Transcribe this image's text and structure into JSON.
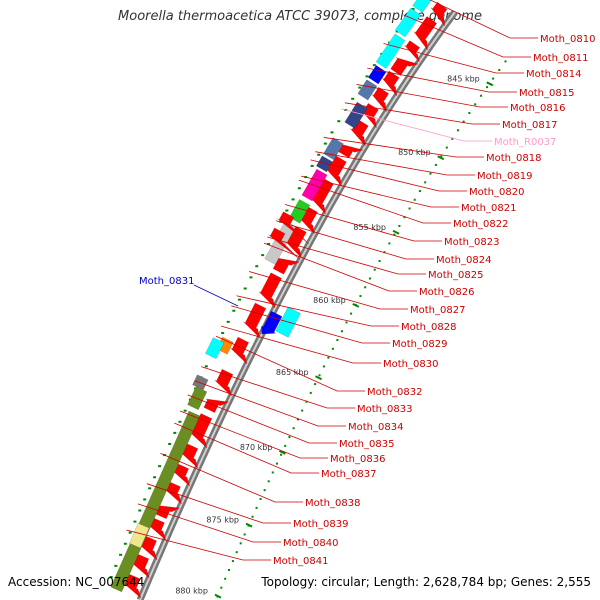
{
  "header": {
    "title": "Moorella thermoacetica ATCC 39073, complete genome"
  },
  "footer": {
    "accession": "Accession: NC_007644",
    "summary": "Topology: circular; Length: 2,628,784 bp; Genes: 2,555"
  },
  "colors": {
    "forward": "#ff0000",
    "label_default": "#cc0000",
    "label_rna": "#ff99cc",
    "label_selected": "#0000cc",
    "cyan": "#00ffff",
    "blue": "#0000ff",
    "olive": "#6b8e23",
    "gray": "#c8c8c8",
    "magenta": "#ff00aa",
    "green": "#22cc22",
    "orange": "#ff8800",
    "steel": "#5577aa",
    "navy": "#334488",
    "pale": "#f0e68c",
    "tick": "#008800"
  },
  "kbp_ticks": [
    "845 kbp",
    "850 kbp",
    "855 kbp",
    "860 kbp",
    "865 kbp",
    "870 kbp",
    "875 kbp",
    "880 kbp"
  ],
  "genes": [
    {
      "name": "Moth_0810",
      "color": "label_default"
    },
    {
      "name": "Moth_0811",
      "color": "label_default"
    },
    {
      "name": "Moth_0814",
      "color": "label_default"
    },
    {
      "name": "Moth_0815",
      "color": "label_default"
    },
    {
      "name": "Moth_0816",
      "color": "label_default"
    },
    {
      "name": "Moth_0817",
      "color": "label_default"
    },
    {
      "name": "Moth_R0037",
      "color": "label_rna"
    },
    {
      "name": "Moth_0818",
      "color": "label_default"
    },
    {
      "name": "Moth_0819",
      "color": "label_default"
    },
    {
      "name": "Moth_0820",
      "color": "label_default"
    },
    {
      "name": "Moth_0821",
      "color": "label_default"
    },
    {
      "name": "Moth_0822",
      "color": "label_default"
    },
    {
      "name": "Moth_0823",
      "color": "label_default"
    },
    {
      "name": "Moth_0824",
      "color": "label_default"
    },
    {
      "name": "Moth_0825",
      "color": "label_default"
    },
    {
      "name": "Moth_0826",
      "color": "label_default"
    },
    {
      "name": "Moth_0827",
      "color": "label_default"
    },
    {
      "name": "Moth_0828",
      "color": "label_default"
    },
    {
      "name": "Moth_0829",
      "color": "label_default"
    },
    {
      "name": "Moth_0830",
      "color": "label_default"
    },
    {
      "name": "Moth_0831",
      "color": "label_selected"
    },
    {
      "name": "Moth_0832",
      "color": "label_default"
    },
    {
      "name": "Moth_0833",
      "color": "label_default"
    },
    {
      "name": "Moth_0834",
      "color": "label_default"
    },
    {
      "name": "Moth_0835",
      "color": "label_default"
    },
    {
      "name": "Moth_0836",
      "color": "label_default"
    },
    {
      "name": "Moth_0837",
      "color": "label_default"
    },
    {
      "name": "Moth_0838",
      "color": "label_default"
    },
    {
      "name": "Moth_0839",
      "color": "label_default"
    },
    {
      "name": "Moth_0840",
      "color": "label_default"
    },
    {
      "name": "Moth_0841",
      "color": "label_default"
    }
  ]
}
